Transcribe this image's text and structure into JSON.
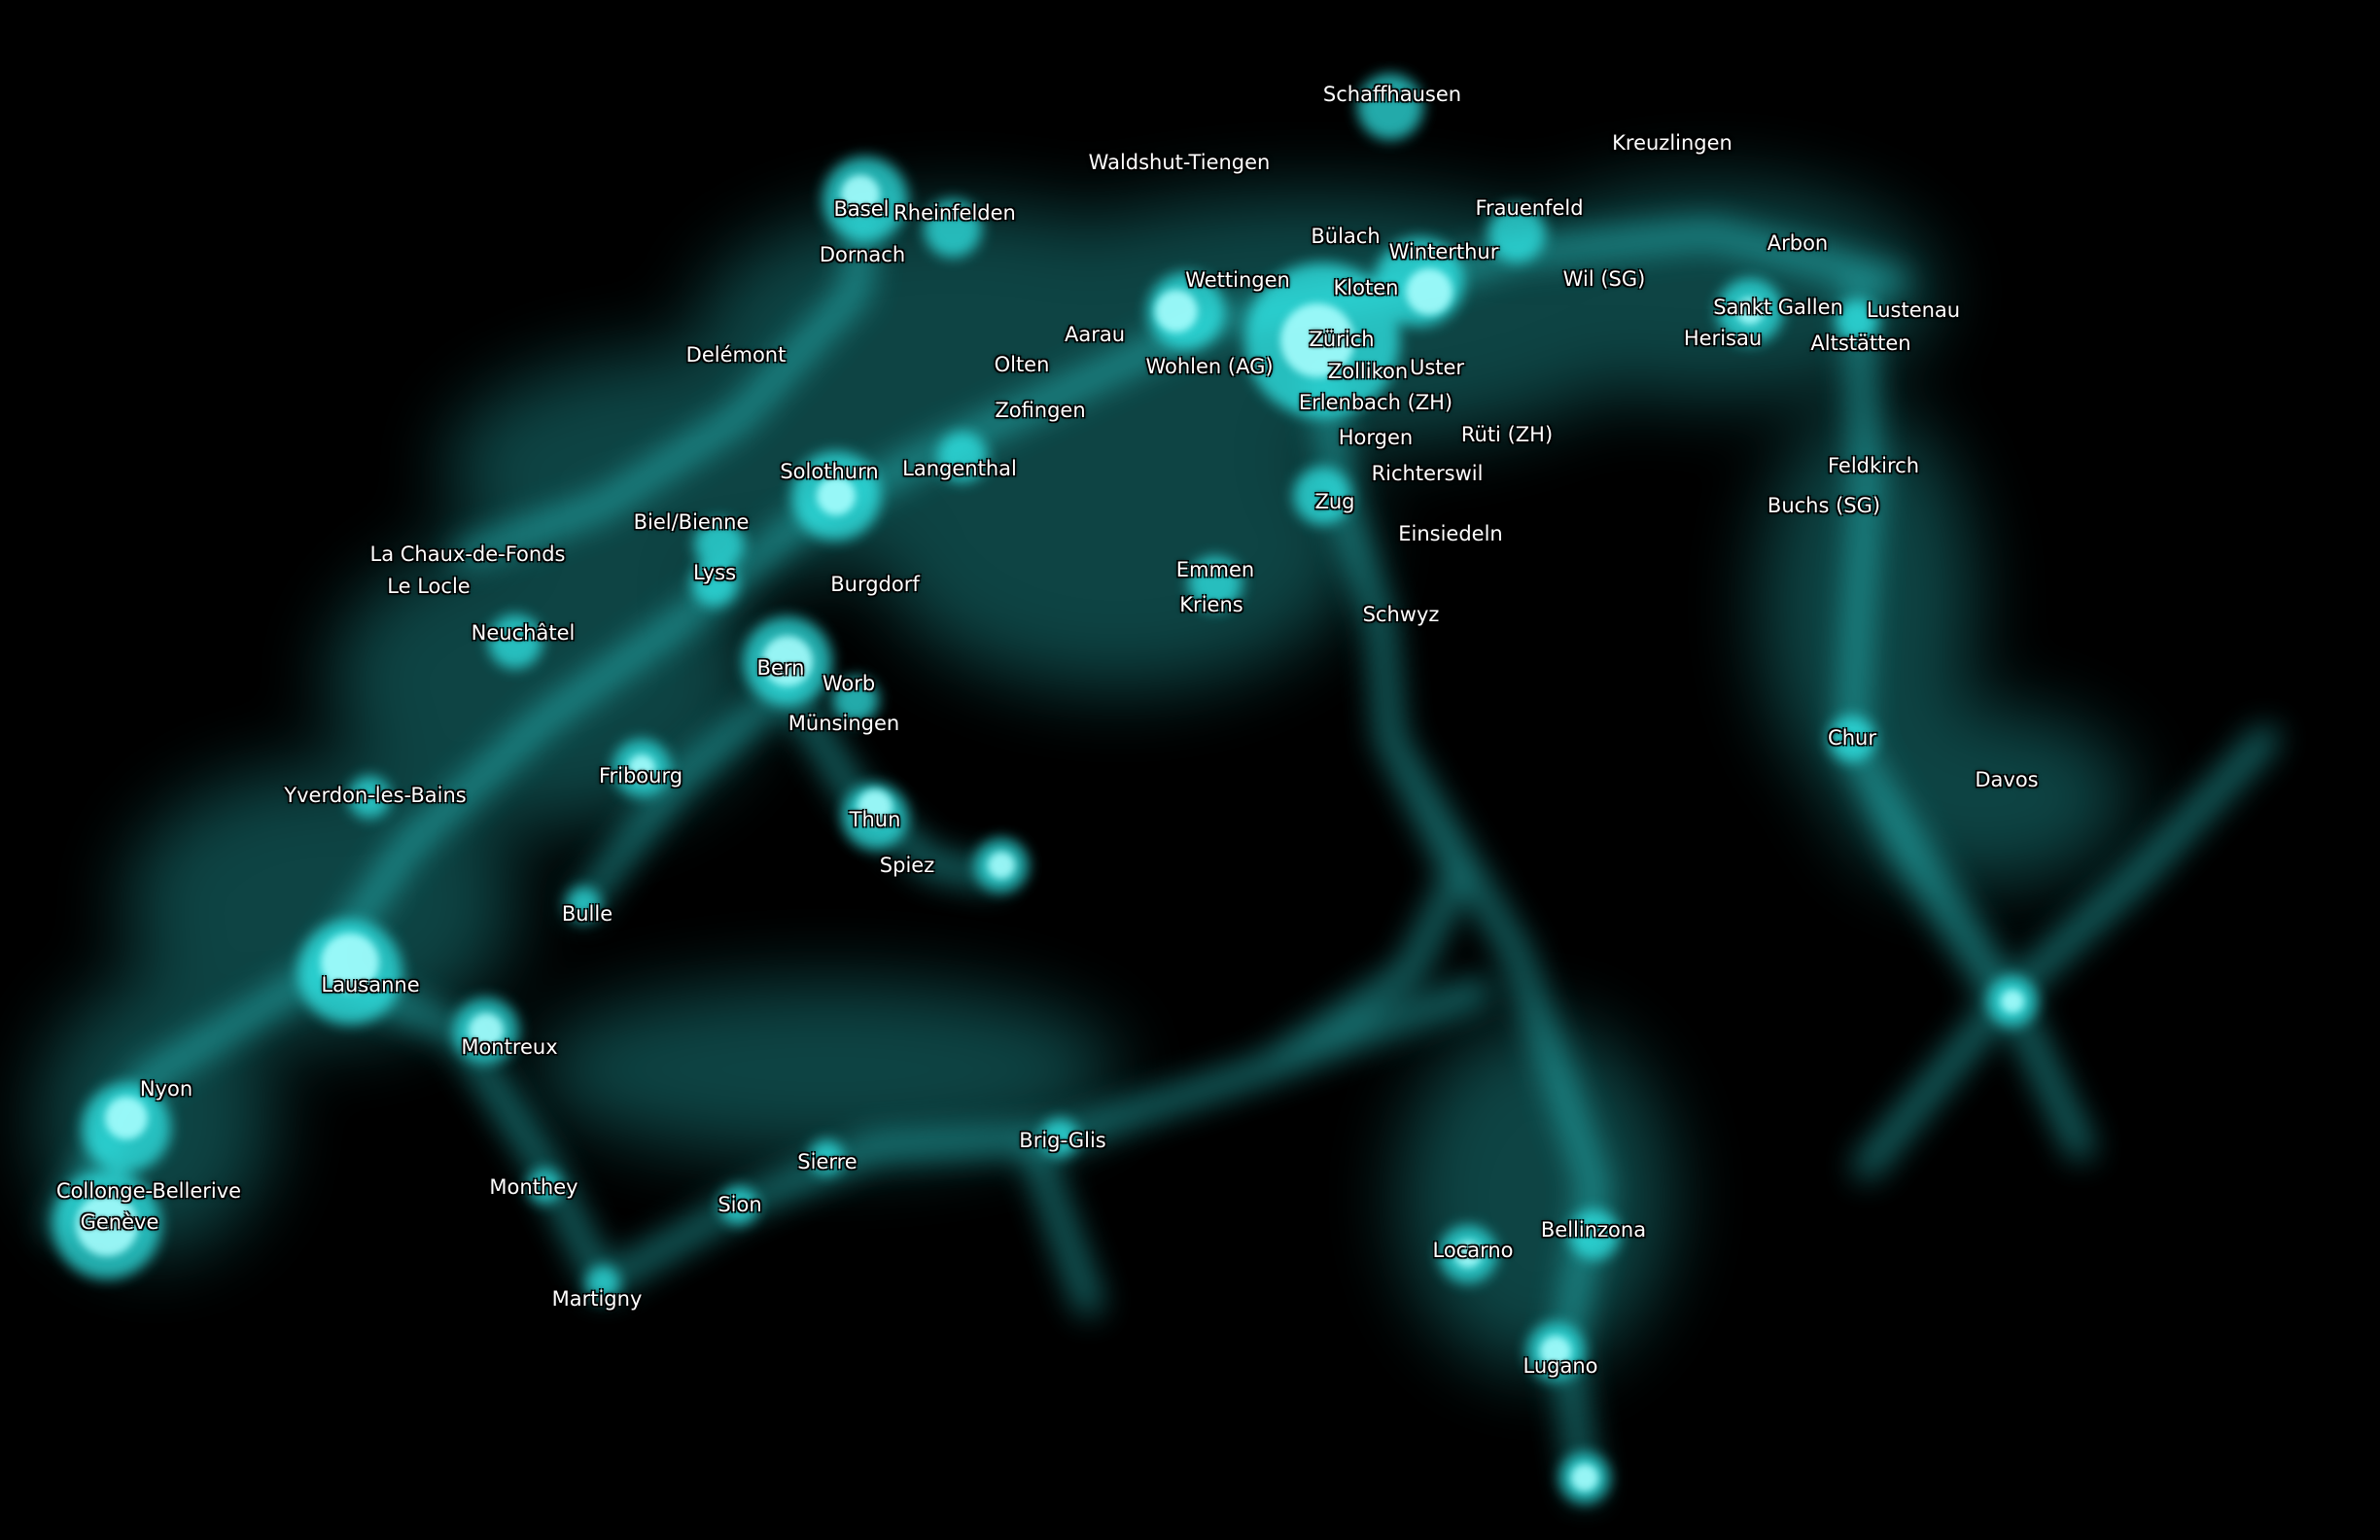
{
  "map": {
    "glow_color": "#33f2f2",
    "background_color": "#000000",
    "cities": [
      {
        "id": "schaffhausen",
        "name": "Schaffhausen"
      },
      {
        "id": "kreuzlingen",
        "name": "Kreuzlingen"
      },
      {
        "id": "waldshut-tiengen",
        "name": "Waldshut-Tiengen"
      },
      {
        "id": "basel",
        "name": "Basel"
      },
      {
        "id": "rheinfelden",
        "name": "Rheinfelden"
      },
      {
        "id": "frauenfeld",
        "name": "Frauenfeld"
      },
      {
        "id": "bulach",
        "name": "Bülach"
      },
      {
        "id": "winterthur",
        "name": "Winterthur"
      },
      {
        "id": "arbon",
        "name": "Arbon"
      },
      {
        "id": "dornach",
        "name": "Dornach"
      },
      {
        "id": "wettingen",
        "name": "Wettingen"
      },
      {
        "id": "kloten",
        "name": "Kloten"
      },
      {
        "id": "wil-sg",
        "name": "Wil (SG)"
      },
      {
        "id": "sankt-gallen",
        "name": "Sankt Gallen"
      },
      {
        "id": "lustenau",
        "name": "Lustenau"
      },
      {
        "id": "aarau",
        "name": "Aarau"
      },
      {
        "id": "zurich",
        "name": "Zürich"
      },
      {
        "id": "herisau",
        "name": "Herisau"
      },
      {
        "id": "altstatten",
        "name": "Altstätten"
      },
      {
        "id": "delemont",
        "name": "Delémont"
      },
      {
        "id": "olten",
        "name": "Olten"
      },
      {
        "id": "wohlen-ag",
        "name": "Wohlen (AG)"
      },
      {
        "id": "zollikon",
        "name": "Zollikon"
      },
      {
        "id": "uster",
        "name": "Uster"
      },
      {
        "id": "erlenbach-zh",
        "name": "Erlenbach (ZH)"
      },
      {
        "id": "zofingen",
        "name": "Zofingen"
      },
      {
        "id": "horgen",
        "name": "Horgen"
      },
      {
        "id": "ruti-zh",
        "name": "Rüti (ZH)"
      },
      {
        "id": "feldkirch",
        "name": "Feldkirch"
      },
      {
        "id": "solothurn",
        "name": "Solothurn"
      },
      {
        "id": "langenthal",
        "name": "Langenthal"
      },
      {
        "id": "richterswil",
        "name": "Richterswil"
      },
      {
        "id": "zug",
        "name": "Zug"
      },
      {
        "id": "buchs-sg",
        "name": "Buchs (SG)"
      },
      {
        "id": "biel-bienne",
        "name": "Biel/Bienne"
      },
      {
        "id": "einsiedeln",
        "name": "Einsiedeln"
      },
      {
        "id": "la-chaux-de-fonds",
        "name": "La Chaux-de-Fonds"
      },
      {
        "id": "emmen",
        "name": "Emmen"
      },
      {
        "id": "lyss",
        "name": "Lyss"
      },
      {
        "id": "burgdorf",
        "name": "Burgdorf"
      },
      {
        "id": "le-locle",
        "name": "Le Locle"
      },
      {
        "id": "kriens",
        "name": "Kriens"
      },
      {
        "id": "schwyz",
        "name": "Schwyz"
      },
      {
        "id": "neuchatel",
        "name": "Neuchâtel"
      },
      {
        "id": "bern",
        "name": "Bern"
      },
      {
        "id": "worb",
        "name": "Worb"
      },
      {
        "id": "munsingen",
        "name": "Münsingen"
      },
      {
        "id": "chur",
        "name": "Chur"
      },
      {
        "id": "fribourg",
        "name": "Fribourg"
      },
      {
        "id": "davos",
        "name": "Davos"
      },
      {
        "id": "yverdon-les-bains",
        "name": "Yverdon-les-Bains"
      },
      {
        "id": "thun",
        "name": "Thun"
      },
      {
        "id": "spiez",
        "name": "Spiez"
      },
      {
        "id": "bulle",
        "name": "Bulle"
      },
      {
        "id": "lausanne",
        "name": "Lausanne"
      },
      {
        "id": "montreux",
        "name": "Montreux"
      },
      {
        "id": "nyon",
        "name": "Nyon"
      },
      {
        "id": "brig-glis",
        "name": "Brig-Glis"
      },
      {
        "id": "sierre",
        "name": "Sierre"
      },
      {
        "id": "collonge-bellerive",
        "name": "Collonge-Bellerive"
      },
      {
        "id": "monthey",
        "name": "Monthey"
      },
      {
        "id": "sion",
        "name": "Sion"
      },
      {
        "id": "geneve",
        "name": "Genève"
      },
      {
        "id": "bellinzona",
        "name": "Bellinzona"
      },
      {
        "id": "locarno",
        "name": "Locarno"
      },
      {
        "id": "martigny",
        "name": "Martigny"
      },
      {
        "id": "lugano",
        "name": "Lugano"
      }
    ]
  }
}
